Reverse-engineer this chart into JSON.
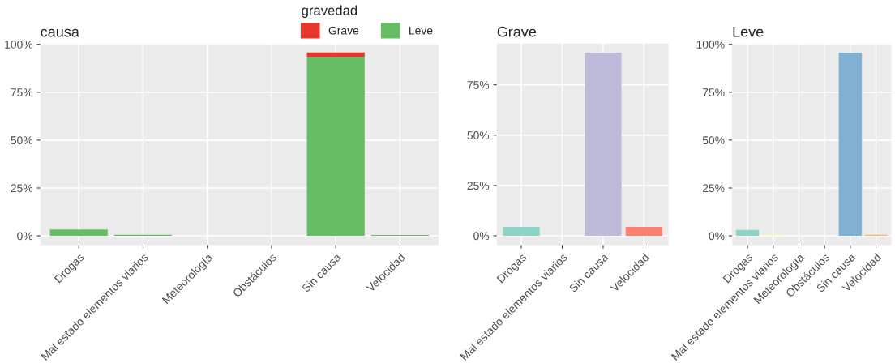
{
  "chart_data": [
    {
      "type": "bar",
      "title": "causa",
      "stacked": true,
      "legend": "top right",
      "legend_title": "gravedad",
      "grid": true,
      "categories": [
        "Drogas",
        "Mal estado elementos viarios",
        "Meteorología",
        "Obstáculos",
        "Sin causa",
        "Velocidad"
      ],
      "series": [
        {
          "name": "Leve",
          "color": "#66bd63",
          "values": [
            3.3,
            0.5,
            0,
            0,
            93.5,
            0.4
          ]
        },
        {
          "name": "Grave",
          "color": "#e6392b",
          "values": [
            0,
            0,
            0,
            0,
            2.2,
            0
          ]
        }
      ],
      "ylim": [
        -4.8,
        100.4
      ],
      "yticks": [
        {
          "value": 0,
          "label": "0%"
        },
        {
          "value": 25,
          "label": "25%"
        },
        {
          "value": 50,
          "label": "50%"
        },
        {
          "value": 75,
          "label": "75%"
        },
        {
          "value": 100,
          "label": "100%"
        }
      ]
    },
    {
      "type": "bar",
      "title": "Grave",
      "grid": true,
      "categories": [
        "Drogas",
        "Mal estado elementos viarios",
        "Sin causa",
        "Velocidad"
      ],
      "values": [
        4.4,
        0,
        91,
        4.4
      ],
      "colors": [
        "#8dd3c7",
        "#ffffb3",
        "#bebada",
        "#fb8072"
      ],
      "ylim": [
        -4.6,
        95.5
      ],
      "yticks": [
        {
          "value": 0,
          "label": "0%"
        },
        {
          "value": 25,
          "label": "25%"
        },
        {
          "value": 50,
          "label": "50%"
        },
        {
          "value": 75,
          "label": "75%"
        }
      ]
    },
    {
      "type": "bar",
      "title": "Leve",
      "grid": true,
      "categories": [
        "Drogas",
        "Mal estado elementos viarios",
        "Meteorología",
        "Obstáculos",
        "Sin causa",
        "Velocidad"
      ],
      "values": [
        3.1,
        0.5,
        0,
        0,
        95.6,
        0.5
      ],
      "colors": [
        "#8dd3c7",
        "#ffffb3",
        "#bebada",
        "#fb8072",
        "#80b1d3",
        "#fdb462"
      ],
      "ylim": [
        -4.8,
        100.4
      ],
      "yticks": [
        {
          "value": 0,
          "label": "0%"
        },
        {
          "value": 25,
          "label": "25%"
        },
        {
          "value": 50,
          "label": "50%"
        },
        {
          "value": 75,
          "label": "75%"
        },
        {
          "value": 100,
          "label": "100%"
        }
      ]
    }
  ]
}
